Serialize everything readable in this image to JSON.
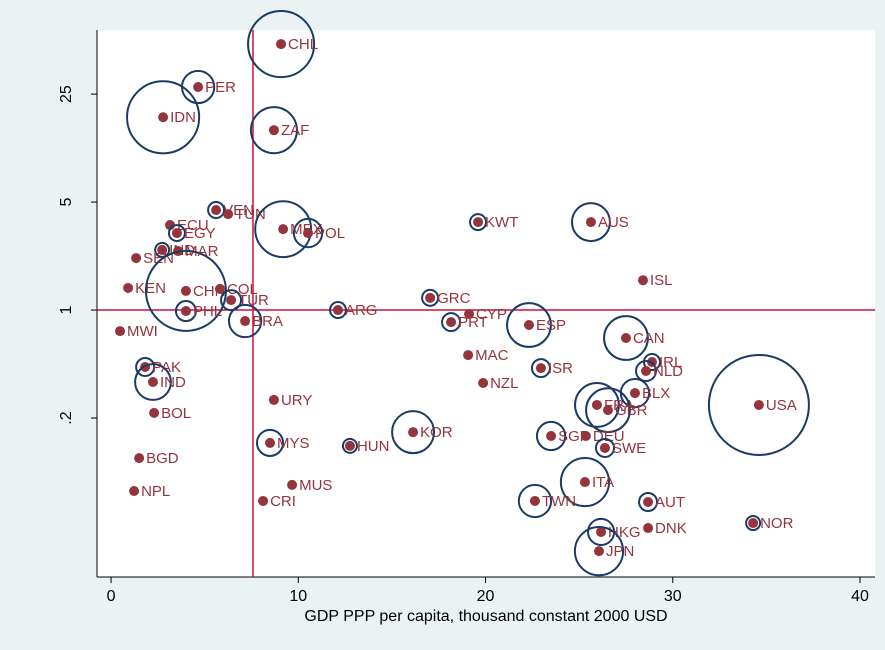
{
  "chart_data": {
    "type": "scatter",
    "x_label": "GDP PPP per capita, thousand constant 2000 USD",
    "xlim": [
      -0.75,
      40.8
    ],
    "xticks": [
      0,
      10,
      20,
      30,
      40
    ],
    "ylim": [
      0.0187,
      65
    ],
    "y_log": true,
    "yticks": [
      {
        "value": 0.2,
        "label": ".2"
      },
      1,
      5,
      25
    ],
    "xline": 7.58,
    "yline": 1,
    "dot_color": "#94343c",
    "circle_color": "#1a3b66",
    "line_color": "#c8143c",
    "points": [
      {
        "label": "CHL",
        "x": 9.08,
        "y": 52.7,
        "size": 10.9
      },
      {
        "label": "PER",
        "x": 4.65,
        "y": 27.8,
        "size": 2.6
      },
      {
        "label": "IDN",
        "x": 2.78,
        "y": 17.7,
        "size": 13
      },
      {
        "label": "ZAF",
        "x": 8.7,
        "y": 14.6,
        "size": 5.3
      },
      {
        "label": "VEN",
        "x": 5.61,
        "y": 4.44,
        "size": 0.64
      },
      {
        "label": "TUN",
        "x": 6.25,
        "y": 4.18,
        "size": null
      },
      {
        "label": "ECU",
        "x": 3.15,
        "y": 3.55,
        "size": null
      },
      {
        "label": "EGY",
        "x": 3.52,
        "y": 3.15,
        "size": 0.64
      },
      {
        "label": "MEX",
        "x": 9.19,
        "y": 3.34,
        "size": 7.8
      },
      {
        "label": "POL",
        "x": 10.52,
        "y": 3.15,
        "size": 2.0
      },
      {
        "label": "KWT",
        "x": 19.6,
        "y": 3.71,
        "size": 0.64
      },
      {
        "label": "AUS",
        "x": 25.63,
        "y": 3.71,
        "size": 3.6
      },
      {
        "label": "IND",
        "x": 2.73,
        "y": 2.45,
        "size": 0.49
      },
      {
        "label": "MAR",
        "x": 3.58,
        "y": 2.41,
        "size": null
      },
      {
        "label": "SEN",
        "x": 1.34,
        "y": 2.17,
        "size": null
      },
      {
        "label": "ISL",
        "x": 28.41,
        "y": 1.56,
        "size": null
      },
      {
        "label": "KEN",
        "x": 0.91,
        "y": 1.39,
        "size": null
      },
      {
        "label": "CHN",
        "x": 4.0,
        "y": 1.33,
        "size": 16
      },
      {
        "label": "COL",
        "x": 5.82,
        "y": 1.37,
        "size": null
      },
      {
        "label": "TUR",
        "x": 6.41,
        "y": 1.16,
        "size": 1.0
      },
      {
        "label": "PHL",
        "x": 4.0,
        "y": 0.985,
        "size": 1.0
      },
      {
        "label": "BRA",
        "x": 7.16,
        "y": 0.849,
        "size": 2.6
      },
      {
        "label": "ARG",
        "x": 12.12,
        "y": 1.0,
        "size": 0.64
      },
      {
        "label": "GRC",
        "x": 17.04,
        "y": 1.2,
        "size": 0.64
      },
      {
        "label": "CYP",
        "x": 19.12,
        "y": 0.942,
        "size": null
      },
      {
        "label": "PRT",
        "x": 18.16,
        "y": 0.836,
        "size": 0.81
      },
      {
        "label": "ESP",
        "x": 22.32,
        "y": 0.8,
        "size": 4.8
      },
      {
        "label": "CAN",
        "x": 27.5,
        "y": 0.659,
        "size": 4.8
      },
      {
        "label": "MWI",
        "x": 0.48,
        "y": 0.731,
        "size": null
      },
      {
        "label": "MAC",
        "x": 19.07,
        "y": 0.511,
        "size": null
      },
      {
        "label": "IRL",
        "x": 28.89,
        "y": 0.461,
        "size": 0.64
      },
      {
        "label": "NLD",
        "x": 28.57,
        "y": 0.403,
        "size": 1.0
      },
      {
        "label": "PAK",
        "x": 1.82,
        "y": 0.428,
        "size": 0.81
      },
      {
        "label": "ISR",
        "x": 22.96,
        "y": 0.421,
        "size": 0.81
      },
      {
        "label": "IND",
        "x": 2.24,
        "y": 0.342,
        "size": 3.2
      },
      {
        "label": "NZL",
        "x": 19.87,
        "y": 0.337,
        "size": null
      },
      {
        "label": "BLX",
        "x": 27.98,
        "y": 0.29,
        "size": 2.0
      },
      {
        "label": "FRA",
        "x": 25.95,
        "y": 0.243,
        "size": 4.8
      },
      {
        "label": "USA",
        "x": 34.6,
        "y": 0.243,
        "size": 25
      },
      {
        "label": "GBR",
        "x": 26.54,
        "y": 0.225,
        "size": 4.8
      },
      {
        "label": "BOL",
        "x": 2.3,
        "y": 0.216,
        "size": null
      },
      {
        "label": "URY",
        "x": 8.7,
        "y": 0.262,
        "size": null
      },
      {
        "label": "KOR",
        "x": 16.13,
        "y": 0.162,
        "size": 4.4
      },
      {
        "label": "SGP",
        "x": 23.5,
        "y": 0.153,
        "size": 2.0
      },
      {
        "label": "DEU",
        "x": 25.36,
        "y": 0.153,
        "size": null
      },
      {
        "label": "SWE",
        "x": 26.38,
        "y": 0.128,
        "size": 0.81
      },
      {
        "label": "MYS",
        "x": 8.49,
        "y": 0.138,
        "size": 1.7
      },
      {
        "label": "HUN",
        "x": 12.76,
        "y": 0.132,
        "size": 0.49
      },
      {
        "label": "BGD",
        "x": 1.5,
        "y": 0.11,
        "size": null
      },
      {
        "label": "ITA",
        "x": 25.31,
        "y": 0.077,
        "size": 5.8
      },
      {
        "label": "MUS",
        "x": 9.67,
        "y": 0.0738,
        "size": null
      },
      {
        "label": "NPL",
        "x": 1.23,
        "y": 0.0674,
        "size": null
      },
      {
        "label": "CRI",
        "x": 8.12,
        "y": 0.0581,
        "size": null
      },
      {
        "label": "TWN",
        "x": 22.64,
        "y": 0.0581,
        "size": 2.6
      },
      {
        "label": "AUT",
        "x": 28.68,
        "y": 0.0572,
        "size": 0.81
      },
      {
        "label": "NOR",
        "x": 34.29,
        "y": 0.0418,
        "size": 0.49
      },
      {
        "label": "DNK",
        "x": 28.68,
        "y": 0.0388,
        "size": null
      },
      {
        "label": "HKG",
        "x": 26.17,
        "y": 0.0366,
        "size": 1.7
      },
      {
        "label": "JPN",
        "x": 26.06,
        "y": 0.0275,
        "size": 5.8
      }
    ]
  }
}
